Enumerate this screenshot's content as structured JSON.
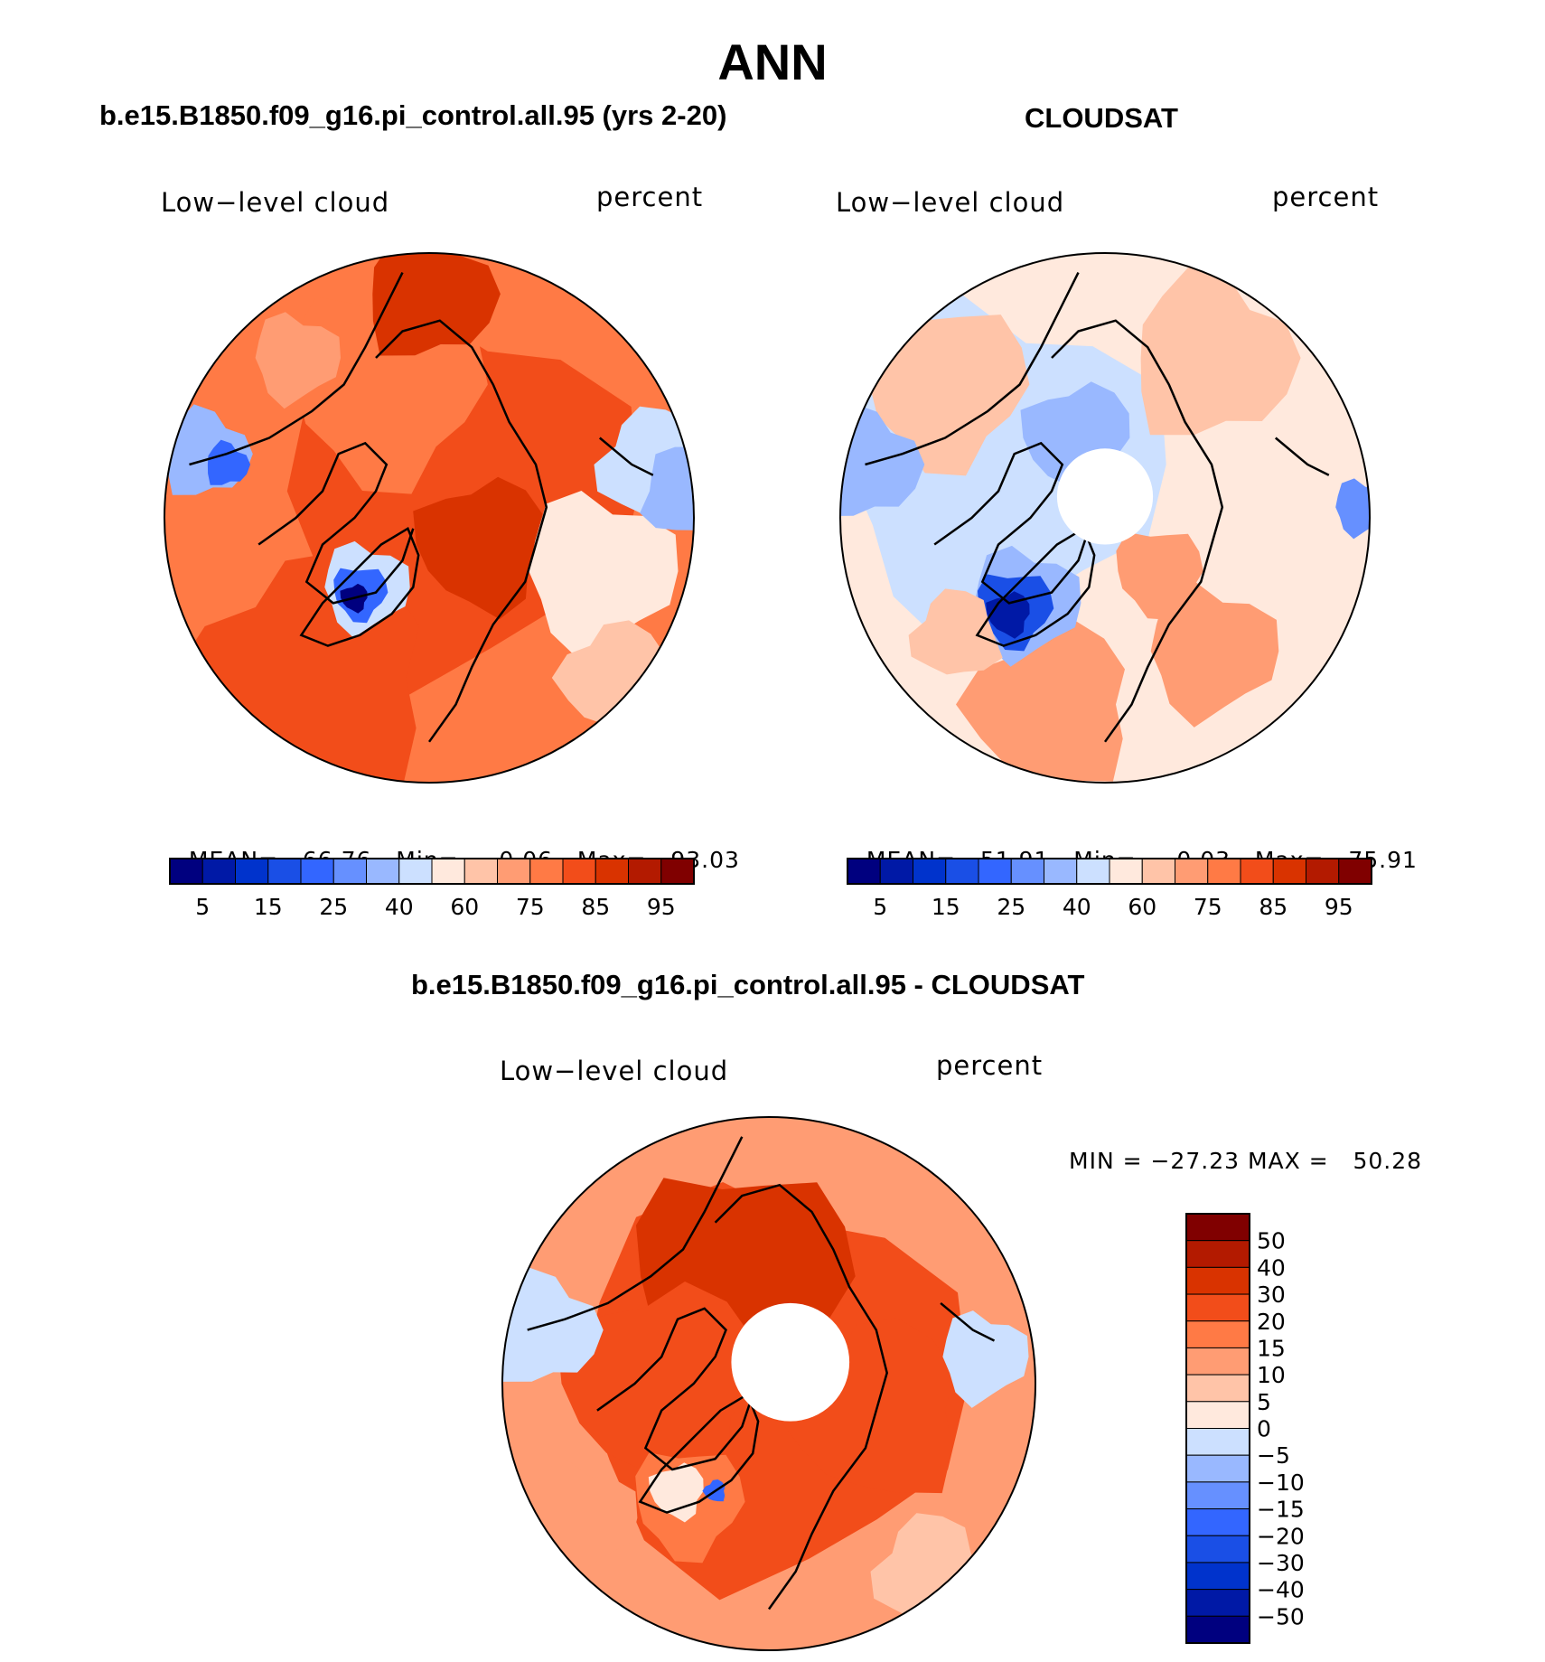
{
  "title": "ANN",
  "panels": [
    {
      "header": "b.e15.B1850.f09_g16.pi_control.all.95 (yrs 2-20)",
      "left_label": "Low−level cloud",
      "right_label": "percent",
      "stats": {
        "mean_label": "MEAN=",
        "mean": "66.76",
        "min_label": "Min=",
        "min": "0.06",
        "max_label": "Max=",
        "max": "93.03"
      },
      "has_pole_hole": false,
      "field": "model"
    },
    {
      "header": "CLOUDSAT",
      "left_label": "Low−level cloud",
      "right_label": "percent",
      "stats": {
        "mean_label": "MEAN=",
        "mean": "51.91",
        "min_label": "Min=",
        "min": "0.03",
        "max_label": "Max=",
        "max": "75.91"
      },
      "has_pole_hole": true,
      "field": "obs"
    }
  ],
  "diff_panel": {
    "header": "b.e15.B1850.f09_g16.pi_control.all.95 - CLOUDSAT",
    "left_label": "Low−level cloud",
    "right_label": "percent",
    "minmax_text": "MIN = −27.23 MAX =   50.28"
  },
  "abs_colorbar": {
    "colors": [
      "#00007f",
      "#0019a6",
      "#0033cc",
      "#1a4fe6",
      "#3366ff",
      "#6690ff",
      "#99b8ff",
      "#cce0ff",
      "#ffe9dd",
      "#ffc4a8",
      "#ff9c73",
      "#ff7a45",
      "#f24d1a",
      "#d93300",
      "#b31a00",
      "#800000"
    ],
    "tick_labels": [
      "5",
      "15",
      "25",
      "40",
      "60",
      "75",
      "85",
      "95"
    ]
  },
  "diff_colorbar": {
    "colors": [
      "#00007f",
      "#0019a6",
      "#0033cc",
      "#1a4fe6",
      "#3366ff",
      "#6690ff",
      "#99b8ff",
      "#cce0ff",
      "#ffe9dd",
      "#ffc4a8",
      "#ff9c73",
      "#ff7a45",
      "#f24d1a",
      "#d93300",
      "#b31a00",
      "#800000"
    ],
    "tick_labels": [
      "50",
      "40",
      "30",
      "20",
      "15",
      "10",
      "5",
      "0",
      "−5",
      "−10",
      "−15",
      "−20",
      "−30",
      "−40",
      "−50"
    ]
  }
}
